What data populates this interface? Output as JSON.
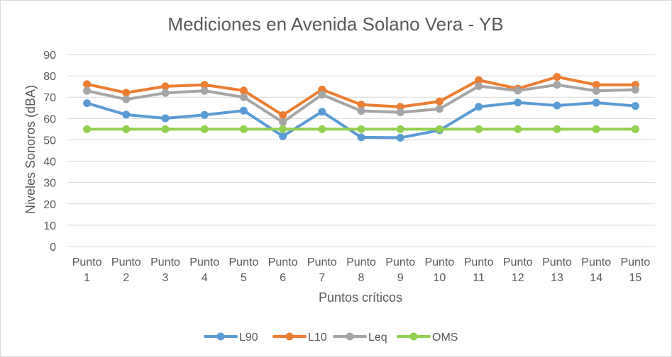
{
  "chart_data": {
    "type": "line",
    "title": "Mediciones en Avenida Solano Vera - YB",
    "xlabel": "Puntos críticos",
    "ylabel": "Niveles Sonoros (dBA)",
    "ylim": [
      0,
      90
    ],
    "yticks": [
      0,
      10,
      20,
      30,
      40,
      50,
      60,
      70,
      80,
      90
    ],
    "grid": true,
    "legend_position": "bottom",
    "categories": [
      [
        "Punto",
        "1"
      ],
      [
        "Punto",
        "2"
      ],
      [
        "Punto",
        "3"
      ],
      [
        "Punto",
        "4"
      ],
      [
        "Punto",
        "5"
      ],
      [
        "Punto",
        "6"
      ],
      [
        "Punto",
        "7"
      ],
      [
        "Punto",
        "8"
      ],
      [
        "Punto",
        "9"
      ],
      [
        "Punto",
        "10"
      ],
      [
        "Punto",
        "11"
      ],
      [
        "Punto",
        "12"
      ],
      [
        "Punto",
        "13"
      ],
      [
        "Punto",
        "14"
      ],
      [
        "Punto",
        "15"
      ]
    ],
    "series": [
      {
        "name": "L90",
        "color": "#5b9bd5",
        "values": [
          67.2,
          61.8,
          60.1,
          61.7,
          63.7,
          51.7,
          63.2,
          51.2,
          51.0,
          54.5,
          65.5,
          67.5,
          66.1,
          67.4,
          65.9
        ]
      },
      {
        "name": "L10",
        "color": "#ed7d31",
        "values": [
          76.1,
          72.1,
          75.1,
          75.8,
          73.1,
          61.6,
          73.6,
          66.5,
          65.5,
          68.0,
          78.0,
          74.0,
          79.5,
          75.8,
          75.8
        ]
      },
      {
        "name": "Leq",
        "color": "#a5a5a5",
        "values": [
          73.0,
          69.0,
          72.0,
          73.0,
          70.0,
          58.3,
          71.2,
          63.6,
          62.9,
          64.5,
          75.2,
          73.1,
          75.8,
          73.0,
          73.5
        ]
      },
      {
        "name": "OMS",
        "color": "#92d050",
        "values": [
          55,
          55,
          55,
          55,
          55,
          55,
          55,
          55,
          55,
          55,
          55,
          55,
          55,
          55,
          55
        ]
      }
    ]
  }
}
